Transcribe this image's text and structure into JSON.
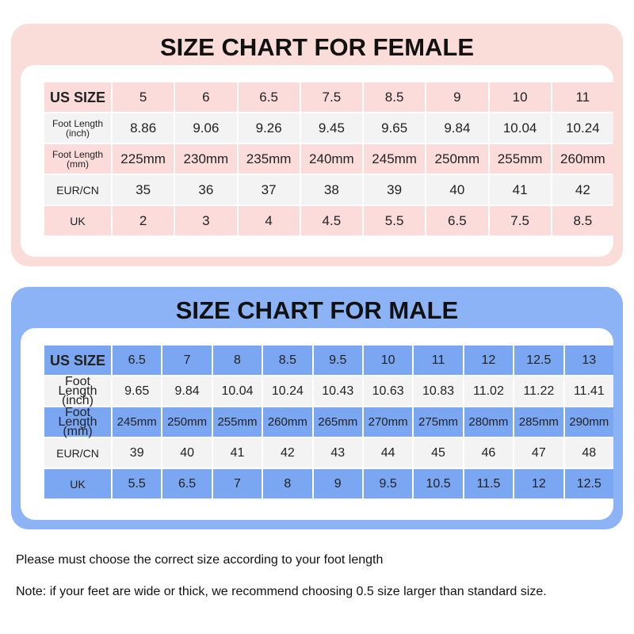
{
  "female": {
    "title": "SIZE CHART FOR FEMALE",
    "rows": [
      {
        "label": "US SIZE",
        "values": [
          "5",
          "6",
          "6.5",
          "7.5",
          "8.5",
          "9",
          "10",
          "11"
        ]
      },
      {
        "label_lines": [
          "Foot Length",
          "(inch)"
        ],
        "values": [
          "8.86",
          "9.06",
          "9.26",
          "9.45",
          "9.65",
          "9.84",
          "10.04",
          "10.24"
        ]
      },
      {
        "label_lines": [
          "Foot Length",
          "(mm)"
        ],
        "values": [
          "225mm",
          "230mm",
          "235mm",
          "240mm",
          "245mm",
          "250mm",
          "255mm",
          "260mm"
        ]
      },
      {
        "label": "EUR/CN",
        "values": [
          "35",
          "36",
          "37",
          "38",
          "39",
          "40",
          "41",
          "42"
        ]
      },
      {
        "label": "UK",
        "values": [
          "2",
          "3",
          "4",
          "4.5",
          "5.5",
          "6.5",
          "7.5",
          "8.5"
        ]
      }
    ]
  },
  "male": {
    "title": "SIZE CHART FOR MALE",
    "rows": [
      {
        "label": "US SIZE",
        "values": [
          "6.5",
          "7",
          "8",
          "8.5",
          "9.5",
          "10",
          "11",
          "12",
          "12.5",
          "13"
        ]
      },
      {
        "label_lines": [
          "Foot Length",
          "(inch)"
        ],
        "values": [
          "9.65",
          "9.84",
          "10.04",
          "10.24",
          "10.43",
          "10.63",
          "10.83",
          "11.02",
          "11.22",
          "11.41"
        ]
      },
      {
        "label_lines": [
          "Foot Length",
          "(mm)"
        ],
        "values": [
          "245mm",
          "250mm",
          "255mm",
          "260mm",
          "265mm",
          "270mm",
          "275mm",
          "280mm",
          "285mm",
          "290mm"
        ]
      },
      {
        "label": "EUR/CN",
        "values": [
          "39",
          "40",
          "41",
          "42",
          "43",
          "44",
          "45",
          "46",
          "47",
          "48"
        ]
      },
      {
        "label": "UK",
        "values": [
          "5.5",
          "6.5",
          "7",
          "8",
          "9",
          "9.5",
          "10.5",
          "11.5",
          "12",
          "12.5"
        ]
      }
    ]
  },
  "notes": {
    "line1": "Please must choose the correct size according to your foot length",
    "line2": "Note: if your feet are wide or thick, we recommend choosing 0.5 size larger than standard size."
  },
  "colors": {
    "female_panel": "#fadcd8",
    "female_band": "#fbdcdb",
    "male_panel": "#8db3f7",
    "male_band": "#7aa6f2",
    "plain_row": "#f3f3f3"
  }
}
